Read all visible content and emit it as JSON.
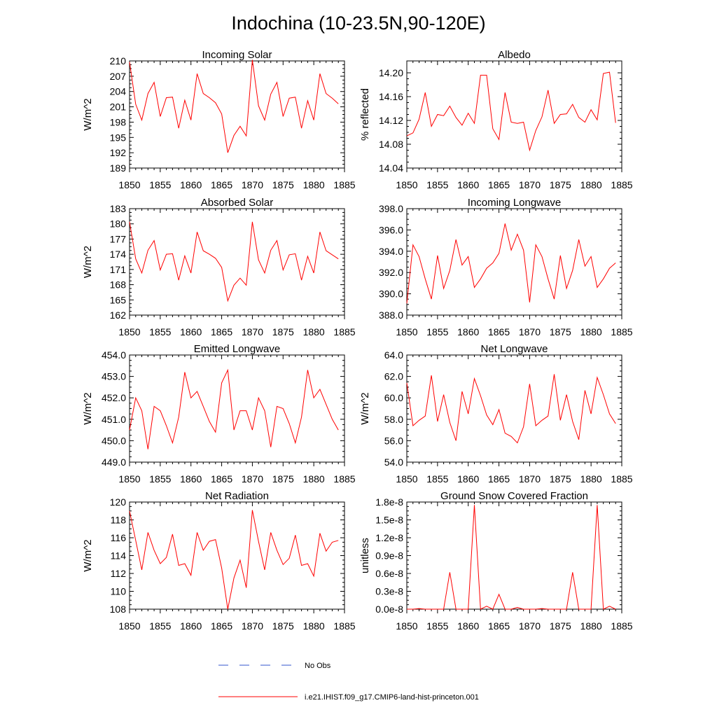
{
  "figure": {
    "title": "Indochina (10-23.5N,90-120E)",
    "legend": [
      {
        "label": "No Obs",
        "color": "#3355cc",
        "style": "dashed"
      },
      {
        "label": "i.e21.IHIST.f09_g17.CMIP6-land-hist-princeton.001",
        "color": "#ff0000",
        "style": "solid"
      }
    ],
    "series_color": "#ff0000"
  },
  "chart_data": [
    {
      "type": "line",
      "title": "Incoming Solar",
      "ylabel": "W/m^2",
      "xlim": [
        1850,
        1885
      ],
      "ylim": [
        189,
        210
      ],
      "yticks": [
        189,
        192,
        195,
        198,
        201,
        204,
        207,
        210
      ],
      "ytick_labels": [
        "189",
        "192",
        "195",
        "198",
        "201",
        "204",
        "207",
        "210"
      ],
      "xticks": [
        1850,
        1855,
        1860,
        1865,
        1870,
        1875,
        1880,
        1885
      ],
      "x": [
        1850,
        1851,
        1852,
        1853,
        1854,
        1855,
        1856,
        1857,
        1858,
        1859,
        1860,
        1861,
        1862,
        1863,
        1864,
        1865,
        1866,
        1867,
        1868,
        1869,
        1870,
        1871,
        1872,
        1873,
        1874,
        1875,
        1876,
        1877,
        1878,
        1879,
        1880,
        1881,
        1882,
        1883,
        1884
      ],
      "series": [
        {
          "values": [
            209.8,
            201.5,
            198.4,
            203.6,
            205.8,
            199.1,
            202.8,
            202.9,
            196.8,
            202.3,
            198.4,
            207.5,
            203.6,
            202.8,
            201.8,
            199.6,
            192.0,
            195.4,
            197.2,
            195.3,
            210.2,
            201.2,
            198.4,
            203.5,
            205.8,
            199.1,
            202.7,
            202.9,
            196.8,
            202.2,
            198.4,
            207.5,
            203.6,
            202.7,
            201.6
          ]
        }
      ]
    },
    {
      "type": "line",
      "title": "Albedo",
      "ylabel": "% reflected",
      "xlim": [
        1850,
        1885
      ],
      "ylim": [
        14.04,
        14.22
      ],
      "yticks": [
        14.04,
        14.08,
        14.12,
        14.16,
        14.2
      ],
      "ytick_labels": [
        "14.04",
        "14.08",
        "14.12",
        "14.16",
        "14.20"
      ],
      "xticks": [
        1850,
        1855,
        1860,
        1865,
        1870,
        1875,
        1880,
        1885
      ],
      "x": [
        1850,
        1851,
        1852,
        1853,
        1854,
        1855,
        1856,
        1857,
        1858,
        1859,
        1860,
        1861,
        1862,
        1863,
        1864,
        1865,
        1866,
        1867,
        1868,
        1869,
        1870,
        1871,
        1872,
        1873,
        1874,
        1875,
        1876,
        1877,
        1878,
        1879,
        1880,
        1881,
        1882,
        1883,
        1884
      ],
      "series": [
        {
          "values": [
            14.094,
            14.099,
            14.122,
            14.167,
            14.11,
            14.13,
            14.128,
            14.144,
            14.125,
            14.112,
            14.132,
            14.115,
            14.196,
            14.196,
            14.106,
            14.088,
            14.167,
            14.117,
            14.115,
            14.117,
            14.07,
            14.103,
            14.126,
            14.171,
            14.115,
            14.13,
            14.131,
            14.147,
            14.125,
            14.117,
            14.138,
            14.121,
            14.199,
            14.201,
            14.116
          ]
        }
      ]
    },
    {
      "type": "line",
      "title": "Absorbed Solar",
      "ylabel": "W/m^2",
      "xlim": [
        1850,
        1885
      ],
      "ylim": [
        162,
        183
      ],
      "yticks": [
        162,
        165,
        168,
        171,
        174,
        177,
        180,
        183
      ],
      "ytick_labels": [
        "162",
        "165",
        "168",
        "171",
        "174",
        "177",
        "180",
        "183"
      ],
      "xticks": [
        1850,
        1855,
        1860,
        1865,
        1870,
        1875,
        1880,
        1885
      ],
      "x": [
        1850,
        1851,
        1852,
        1853,
        1854,
        1855,
        1856,
        1857,
        1858,
        1859,
        1860,
        1861,
        1862,
        1863,
        1864,
        1865,
        1866,
        1867,
        1868,
        1869,
        1870,
        1871,
        1872,
        1873,
        1874,
        1875,
        1876,
        1877,
        1878,
        1879,
        1880,
        1881,
        1882,
        1883,
        1884
      ],
      "series": [
        {
          "values": [
            180.4,
            173.1,
            170.3,
            174.8,
            176.7,
            170.9,
            174.0,
            174.1,
            168.9,
            173.7,
            170.3,
            178.4,
            174.7,
            174.0,
            173.2,
            171.4,
            164.8,
            167.9,
            169.3,
            167.9,
            180.4,
            172.9,
            170.3,
            174.8,
            176.7,
            170.9,
            173.9,
            174.1,
            168.9,
            173.6,
            170.3,
            178.4,
            174.7,
            173.9,
            173.1
          ]
        }
      ]
    },
    {
      "type": "line",
      "title": "Incoming Longwave",
      "ylabel": "",
      "xlim": [
        1850,
        1885
      ],
      "ylim": [
        388.0,
        398.0
      ],
      "yticks": [
        388,
        390,
        392,
        394,
        396,
        398
      ],
      "ytick_labels": [
        "388.0",
        "390.0",
        "392.0",
        "394.0",
        "396.0",
        "398.0"
      ],
      "xticks": [
        1850,
        1855,
        1860,
        1865,
        1870,
        1875,
        1880,
        1885
      ],
      "x": [
        1850,
        1851,
        1852,
        1853,
        1854,
        1855,
        1856,
        1857,
        1858,
        1859,
        1860,
        1861,
        1862,
        1863,
        1864,
        1865,
        1866,
        1867,
        1868,
        1869,
        1870,
        1871,
        1872,
        1873,
        1874,
        1875,
        1876,
        1877,
        1878,
        1879,
        1880,
        1881,
        1882,
        1883,
        1884
      ],
      "series": [
        {
          "values": [
            389.1,
            394.6,
            393.5,
            391.4,
            389.5,
            393.6,
            390.5,
            392.2,
            395.1,
            392.7,
            393.5,
            390.6,
            391.4,
            392.4,
            392.9,
            393.8,
            396.6,
            394.1,
            395.6,
            394.1,
            389.2,
            394.6,
            393.5,
            391.4,
            389.5,
            393.6,
            390.5,
            392.2,
            395.1,
            392.6,
            393.5,
            390.6,
            391.4,
            392.4,
            392.9
          ]
        }
      ]
    },
    {
      "type": "line",
      "title": "Emitted Longwave",
      "ylabel": "W/m^2",
      "xlim": [
        1850,
        1885
      ],
      "ylim": [
        449.0,
        454.0
      ],
      "yticks": [
        449,
        450,
        451,
        452,
        453,
        454
      ],
      "ytick_labels": [
        "449.0",
        "450.0",
        "451.0",
        "452.0",
        "453.0",
        "454.0"
      ],
      "xticks": [
        1850,
        1855,
        1860,
        1865,
        1870,
        1875,
        1880,
        1885
      ],
      "x": [
        1850,
        1851,
        1852,
        1853,
        1854,
        1855,
        1856,
        1857,
        1858,
        1859,
        1860,
        1861,
        1862,
        1863,
        1864,
        1865,
        1866,
        1867,
        1868,
        1869,
        1870,
        1871,
        1872,
        1873,
        1874,
        1875,
        1876,
        1877,
        1878,
        1879,
        1880,
        1881,
        1882,
        1883,
        1884
      ],
      "series": [
        {
          "values": [
            450.5,
            452.0,
            451.4,
            449.6,
            451.6,
            451.4,
            450.7,
            449.9,
            451.1,
            453.2,
            452.0,
            452.3,
            451.6,
            450.9,
            450.4,
            452.7,
            453.3,
            450.5,
            451.4,
            451.4,
            450.5,
            452.0,
            451.4,
            449.7,
            451.6,
            451.5,
            450.8,
            449.9,
            451.1,
            453.3,
            452.0,
            452.4,
            451.7,
            451.0,
            450.5
          ]
        }
      ]
    },
    {
      "type": "line",
      "title": "Net Longwave",
      "ylabel": "W/m^2",
      "xlim": [
        1850,
        1885
      ],
      "ylim": [
        54.0,
        64.0
      ],
      "yticks": [
        54,
        56,
        58,
        60,
        62,
        64
      ],
      "ytick_labels": [
        "54.0",
        "56.0",
        "58.0",
        "60.0",
        "62.0",
        "64.0"
      ],
      "xticks": [
        1850,
        1855,
        1860,
        1865,
        1870,
        1875,
        1880,
        1885
      ],
      "x": [
        1850,
        1851,
        1852,
        1853,
        1854,
        1855,
        1856,
        1857,
        1858,
        1859,
        1860,
        1861,
        1862,
        1863,
        1864,
        1865,
        1866,
        1867,
        1868,
        1869,
        1870,
        1871,
        1872,
        1873,
        1874,
        1875,
        1876,
        1877,
        1878,
        1879,
        1880,
        1881,
        1882,
        1883,
        1884
      ],
      "series": [
        {
          "values": [
            61.4,
            57.4,
            57.9,
            58.3,
            62.1,
            57.8,
            60.3,
            57.7,
            56.0,
            60.6,
            58.5,
            61.8,
            60.2,
            58.4,
            57.5,
            58.9,
            56.7,
            56.4,
            55.8,
            57.3,
            61.3,
            57.4,
            57.9,
            58.3,
            62.2,
            57.9,
            60.3,
            57.8,
            56.1,
            60.7,
            58.5,
            61.9,
            60.3,
            58.5,
            57.6
          ]
        }
      ]
    },
    {
      "type": "line",
      "title": "Net Radiation",
      "ylabel": "W/m^2",
      "xlim": [
        1850,
        1885
      ],
      "ylim": [
        108,
        120
      ],
      "yticks": [
        108,
        110,
        112,
        114,
        116,
        118,
        120
      ],
      "ytick_labels": [
        "108",
        "110",
        "112",
        "114",
        "116",
        "118",
        "120"
      ],
      "xticks": [
        1850,
        1855,
        1860,
        1865,
        1870,
        1875,
        1880,
        1885
      ],
      "x": [
        1850,
        1851,
        1852,
        1853,
        1854,
        1855,
        1856,
        1857,
        1858,
        1859,
        1860,
        1861,
        1862,
        1863,
        1864,
        1865,
        1866,
        1867,
        1868,
        1869,
        1870,
        1871,
        1872,
        1873,
        1874,
        1875,
        1876,
        1877,
        1878,
        1879,
        1880,
        1881,
        1882,
        1883,
        1884
      ],
      "series": [
        {
          "values": [
            119.0,
            115.7,
            112.4,
            116.6,
            114.6,
            113.1,
            113.8,
            116.4,
            112.9,
            113.1,
            111.8,
            116.6,
            114.6,
            115.6,
            115.8,
            112.6,
            108.0,
            111.5,
            113.5,
            110.4,
            119.1,
            115.6,
            112.4,
            116.6,
            114.6,
            113.0,
            113.7,
            116.3,
            112.9,
            113.1,
            111.7,
            116.5,
            114.5,
            115.5,
            115.7
          ]
        }
      ]
    },
    {
      "type": "line",
      "title": "Ground Snow Covered Fraction",
      "ylabel": "unitless",
      "xlim": [
        1850,
        1885
      ],
      "ylim": [
        0,
        1.8e-08
      ],
      "yticks": [
        0,
        3e-09,
        6e-09,
        9e-09,
        1.2e-08,
        1.5e-08,
        1.8e-08
      ],
      "ytick_labels": [
        "0.0e-8",
        "0.3e-8",
        "0.6e-8",
        "0.9e-8",
        "1.2e-8",
        "1.5e-8",
        "1.8e-8"
      ],
      "xticks": [
        1850,
        1855,
        1860,
        1865,
        1870,
        1875,
        1880,
        1885
      ],
      "x": [
        1850,
        1851,
        1852,
        1853,
        1854,
        1855,
        1856,
        1857,
        1858,
        1859,
        1860,
        1861,
        1862,
        1863,
        1864,
        1865,
        1866,
        1867,
        1868,
        1869,
        1870,
        1871,
        1872,
        1873,
        1874,
        1875,
        1876,
        1877,
        1878,
        1879,
        1880,
        1881,
        1882,
        1883,
        1884
      ],
      "series": [
        {
          "values": [
            0,
            0,
            1e-10,
            0,
            0,
            0,
            0,
            6.2e-09,
            0,
            0,
            0,
            1.75e-08,
            0,
            5e-10,
            0,
            2.5e-09,
            0,
            0,
            3e-10,
            0,
            0,
            0,
            1e-10,
            0,
            0,
            0,
            0,
            6.2e-09,
            0,
            0,
            0,
            1.75e-08,
            0,
            5e-10,
            0
          ]
        }
      ]
    }
  ]
}
